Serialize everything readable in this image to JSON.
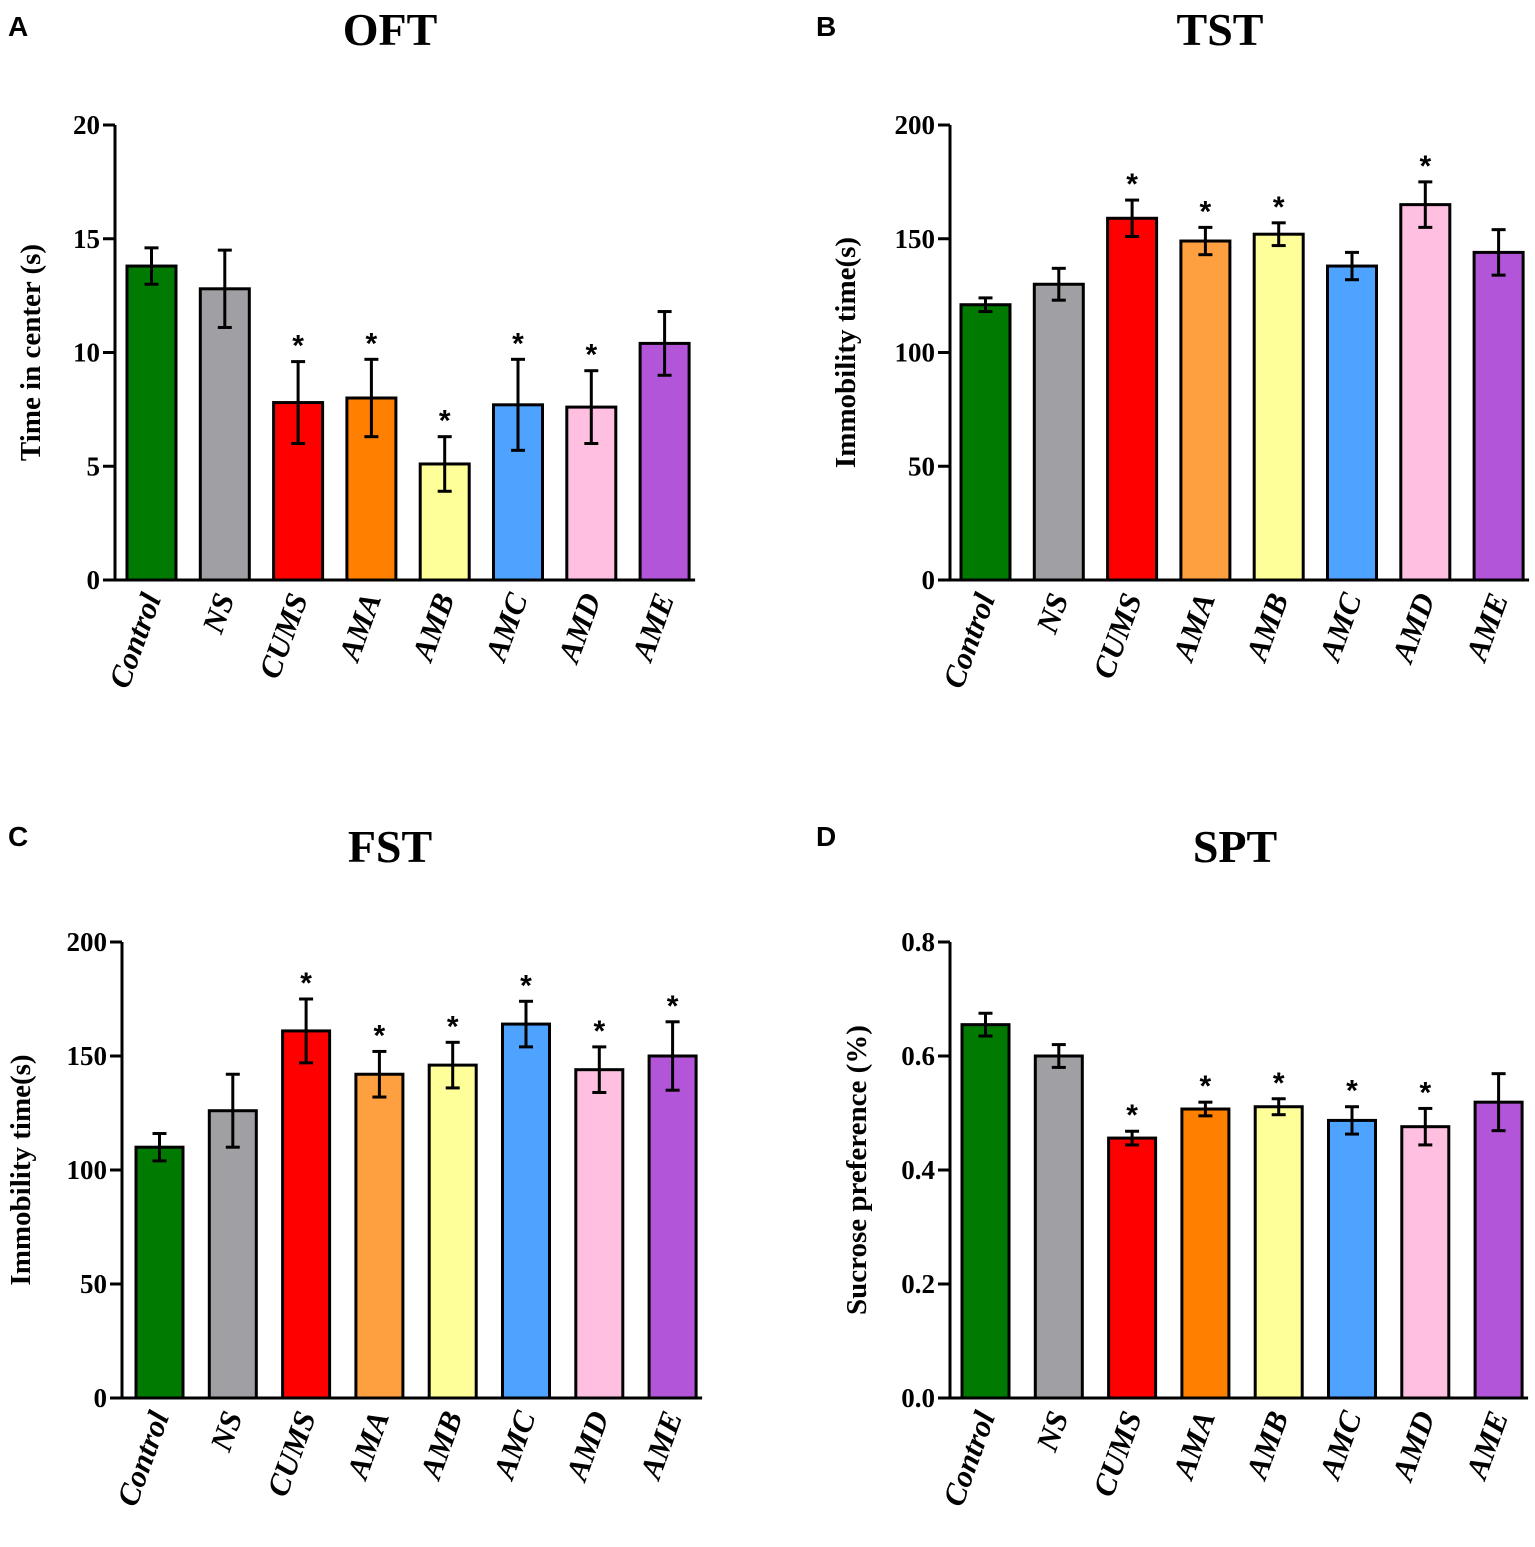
{
  "chart_data": [
    {
      "type": "bar",
      "panel": "A",
      "title": "OFT",
      "ylabel": "Time in center (s)",
      "xlabel": "",
      "ylim": [
        0,
        20
      ],
      "yticks": [
        0,
        5,
        10,
        15,
        20
      ],
      "categories": [
        "Control",
        "NS",
        "CUMS",
        "AMA",
        "AMB",
        "AMC",
        "AMD",
        "AME"
      ],
      "values": [
        13.8,
        12.8,
        7.8,
        8.0,
        5.1,
        7.7,
        7.6,
        10.4
      ],
      "errors": [
        0.8,
        1.7,
        1.8,
        1.7,
        1.2,
        2.0,
        1.6,
        1.4
      ],
      "significance": [
        "",
        "",
        "*",
        "*",
        "*",
        "*",
        "*",
        ""
      ],
      "colors": [
        "#007a00",
        "#a0a0a4",
        "#ff0000",
        "#ff8000",
        "#ffff99",
        "#4da3ff",
        "#ffbfe0",
        "#b255d8"
      ]
    },
    {
      "type": "bar",
      "panel": "B",
      "title": "TST",
      "ylabel": "Immobility time(s)",
      "xlabel": "",
      "ylim": [
        0,
        200
      ],
      "yticks": [
        0,
        50,
        100,
        150,
        200
      ],
      "categories": [
        "Control",
        "NS",
        "CUMS",
        "AMA",
        "AMB",
        "AMC",
        "AMD",
        "AME"
      ],
      "values": [
        121,
        130,
        159,
        149,
        152,
        138,
        165,
        144
      ],
      "errors": [
        3,
        7,
        8,
        6,
        5,
        6,
        10,
        10
      ],
      "significance": [
        "",
        "",
        "*",
        "*",
        "*",
        "",
        "*",
        ""
      ],
      "colors": [
        "#007a00",
        "#a0a0a4",
        "#ff0000",
        "#ffa040",
        "#ffff99",
        "#4da3ff",
        "#ffbfe0",
        "#b255d8"
      ]
    },
    {
      "type": "bar",
      "panel": "C",
      "title": "FST",
      "ylabel": "Immobility time(s)",
      "xlabel": "",
      "ylim": [
        0,
        200
      ],
      "yticks": [
        0,
        50,
        100,
        150,
        200
      ],
      "categories": [
        "Control",
        "NS",
        "CUMS",
        "AMA",
        "AMB",
        "AMC",
        "AMD",
        "AME"
      ],
      "values": [
        110,
        126,
        161,
        142,
        146,
        164,
        144,
        150
      ],
      "errors": [
        6,
        16,
        14,
        10,
        10,
        10,
        10,
        15
      ],
      "significance": [
        "",
        "",
        "*",
        "*",
        "*",
        "*",
        "*",
        "*"
      ],
      "colors": [
        "#007a00",
        "#a0a0a4",
        "#ff0000",
        "#ffa040",
        "#ffff99",
        "#4da3ff",
        "#ffbfe0",
        "#b255d8"
      ]
    },
    {
      "type": "bar",
      "panel": "D",
      "title": "SPT",
      "ylabel": "Sucrose preference (%)",
      "xlabel": "",
      "ylim": [
        0,
        0.8
      ],
      "yticks": [
        0.0,
        0.2,
        0.4,
        0.6,
        0.8
      ],
      "ytick_labels": [
        "0.0",
        "0.2",
        "0.4",
        "0.6",
        "0.8"
      ],
      "categories": [
        "Control",
        "NS",
        "CUMS",
        "AMA",
        "AMB",
        "AMC",
        "AMD",
        "AME"
      ],
      "values": [
        0.655,
        0.6,
        0.456,
        0.507,
        0.511,
        0.487,
        0.476,
        0.519
      ],
      "errors": [
        0.02,
        0.02,
        0.012,
        0.012,
        0.014,
        0.024,
        0.032,
        0.05
      ],
      "significance": [
        "",
        "",
        "*",
        "*",
        "*",
        "*",
        "*",
        ""
      ],
      "colors": [
        "#007a00",
        "#a0a0a4",
        "#ff0000",
        "#ff8000",
        "#ffff99",
        "#4da3ff",
        "#ffbfe0",
        "#b255d8"
      ]
    }
  ]
}
